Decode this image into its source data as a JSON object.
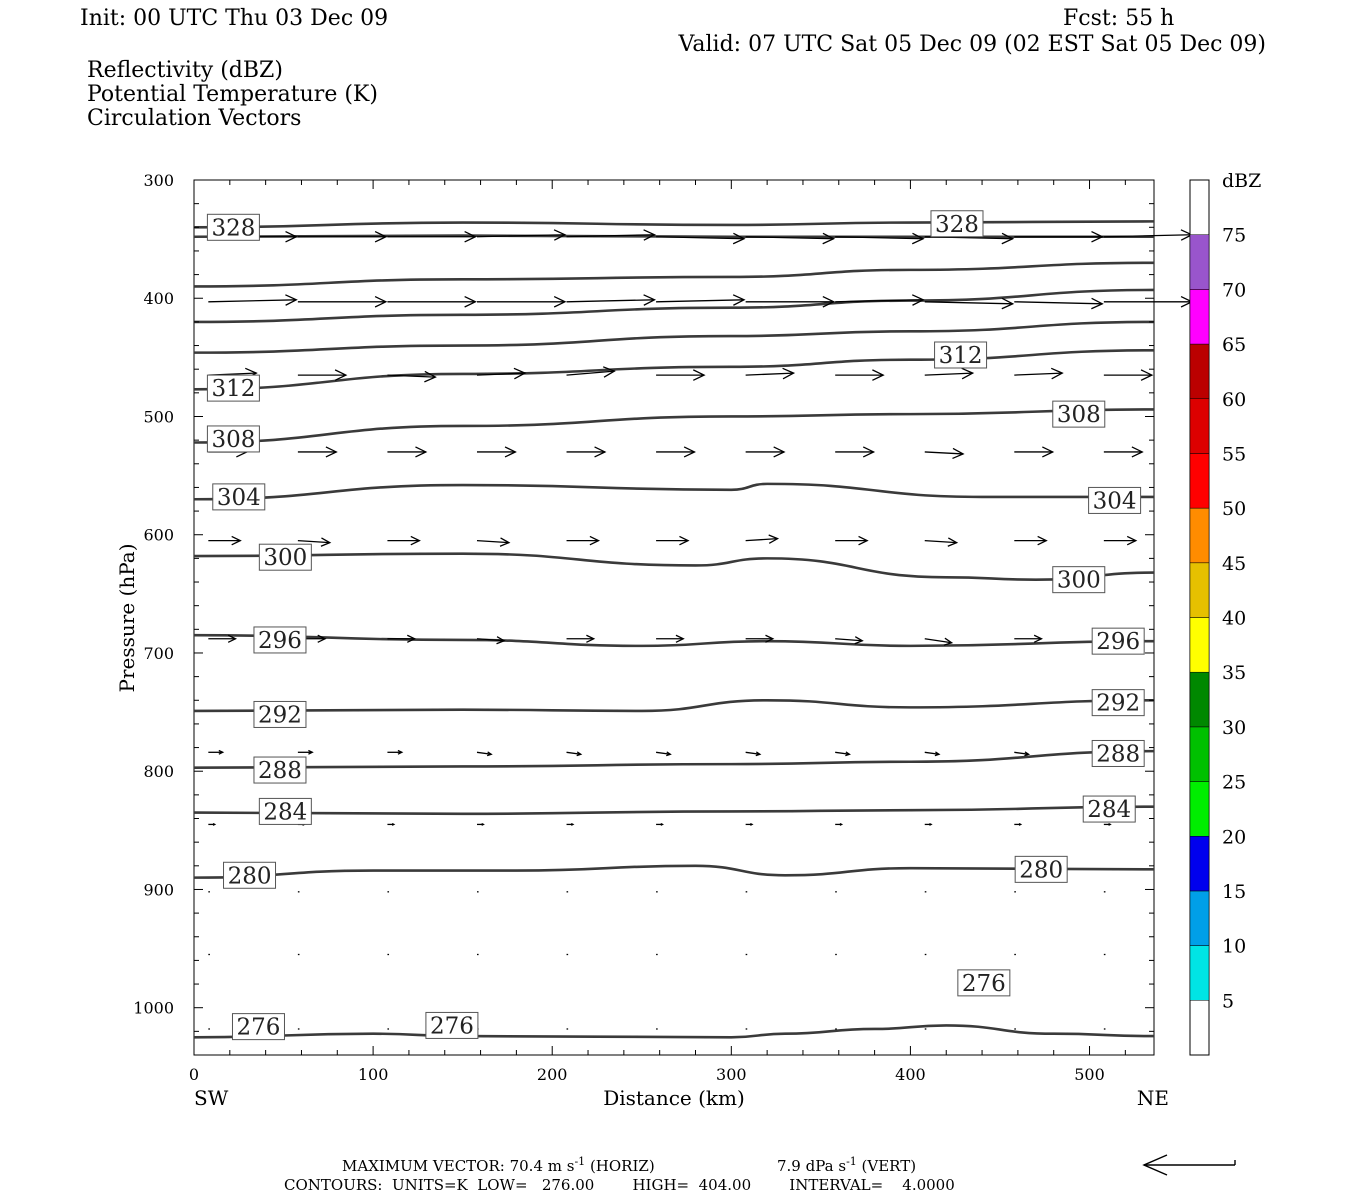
{
  "header": {
    "init": "Init: 00 UTC Thu 03 Dec 09",
    "fcst": "Fcst:   55 h",
    "valid": "Valid: 07 UTC Sat 05 Dec 09 (02 EST Sat 05 Dec 09)",
    "fields": [
      {
        "text": "Reflectivity (dBZ)",
        "color": "#000000"
      },
      {
        "text": "Potential Temperature (K)",
        "color": "#6e6e6e"
      },
      {
        "text": "Circulation Vectors",
        "color": "#000000"
      }
    ]
  },
  "footer": {
    "max_vector_pre": "MAXIMUM VECTOR:  70.4 m s",
    "max_vector_horiz": " (HORIZ)",
    "max_vector_vert_pre": "7.9 dPa s",
    "max_vector_vert": " (VERT)",
    "exponent": "-1",
    "contours": "CONTOURS:  UNITS=K  LOW=   276.00        HIGH=  404.00        INTERVAL=    4.0000"
  },
  "colorbar": {
    "unit": "dBZ",
    "levels": [
      5,
      10,
      15,
      20,
      25,
      30,
      35,
      40,
      45,
      50,
      55,
      60,
      65,
      70,
      75
    ],
    "colors": [
      "#00e5e5",
      "#009fe8",
      "#0000ee",
      "#00ee00",
      "#00c000",
      "#008800",
      "#ffff00",
      "#e6c000",
      "#ff8c00",
      "#ff0000",
      "#dd0000",
      "#bb0000",
      "#ff00ff",
      "#9955cc"
    ]
  },
  "chart_data": {
    "type": "line",
    "title": "",
    "xlabel": "Distance (km)",
    "ylabel": "Pressure (hPa)",
    "xlim": [
      0,
      536
    ],
    "ylim": [
      300,
      1040
    ],
    "y_inverted": true,
    "x_ticks": [
      0,
      100,
      200,
      300,
      400,
      500
    ],
    "y_ticks": [
      300,
      400,
      500,
      600,
      700,
      800,
      900,
      1000
    ],
    "x_end_labels": {
      "left": "SW",
      "right": "NE"
    },
    "contour_field": "Potential Temperature (K)",
    "vector_field": "Circulation Vectors",
    "contours": [
      {
        "label": "",
        "x": [
          0,
          150,
          300,
          400,
          536
        ],
        "p": [
          340,
          336,
          338,
          336,
          335
        ]
      },
      {
        "label": "328",
        "x": [
          0,
          150,
          300,
          400,
          536
        ],
        "p": [
          348,
          347,
          348,
          348,
          348
        ]
      },
      {
        "label": "",
        "x": [
          0,
          150,
          300,
          400,
          536
        ],
        "p": [
          390,
          384,
          382,
          376,
          370
        ]
      },
      {
        "label": "",
        "x": [
          0,
          150,
          300,
          400,
          536
        ],
        "p": [
          420,
          414,
          408,
          402,
          393
        ]
      },
      {
        "label": "",
        "x": [
          0,
          150,
          300,
          400,
          536
        ],
        "p": [
          446,
          440,
          432,
          428,
          420
        ]
      },
      {
        "label": "312",
        "x": [
          0,
          150,
          300,
          400,
          536
        ],
        "p": [
          477,
          464,
          458,
          452,
          444
        ]
      },
      {
        "label": "308",
        "x": [
          0,
          150,
          300,
          400,
          536
        ],
        "p": [
          522,
          508,
          500,
          498,
          494
        ]
      },
      {
        "label": "304",
        "x": [
          0,
          150,
          300,
          320,
          440,
          536
        ],
        "p": [
          570,
          558,
          562,
          557,
          568,
          568
        ]
      },
      {
        "label": "300",
        "x": [
          0,
          150,
          280,
          320,
          420,
          470,
          536
        ],
        "p": [
          618,
          616,
          626,
          620,
          636,
          638,
          632
        ]
      },
      {
        "label": "296",
        "x": [
          0,
          150,
          250,
          320,
          400,
          536
        ],
        "p": [
          685,
          689,
          694,
          690,
          694,
          690
        ]
      },
      {
        "label": "292",
        "x": [
          0,
          150,
          250,
          320,
          400,
          536
        ],
        "p": [
          749,
          748,
          749,
          740,
          746,
          740
        ]
      },
      {
        "label": "288",
        "x": [
          0,
          150,
          300,
          400,
          536
        ],
        "p": [
          797,
          796,
          794,
          792,
          783
        ]
      },
      {
        "label": "284",
        "x": [
          0,
          150,
          300,
          400,
          536
        ],
        "p": [
          835,
          836,
          834,
          833,
          830
        ]
      },
      {
        "label": "280",
        "x": [
          0,
          100,
          180,
          280,
          330,
          400,
          536
        ],
        "p": [
          890,
          884,
          884,
          880,
          888,
          882,
          883
        ]
      },
      {
        "label": "276",
        "x": [
          0,
          100,
          150,
          300,
          330,
          380,
          420,
          480,
          536
        ],
        "p": [
          1025,
          1022,
          1024,
          1025,
          1022,
          1018,
          1015,
          1022,
          1024
        ]
      }
    ],
    "contour_labels": [
      {
        "label": "328",
        "x": 22,
        "p": 340
      },
      {
        "label": "328",
        "x": 426,
        "p": 337
      },
      {
        "label": "312",
        "x": 22,
        "p": 476
      },
      {
        "label": "312",
        "x": 428,
        "p": 448
      },
      {
        "label": "308",
        "x": 22,
        "p": 519
      },
      {
        "label": "308",
        "x": 494,
        "p": 498
      },
      {
        "label": "304",
        "x": 25,
        "p": 568
      },
      {
        "label": "304",
        "x": 514,
        "p": 571
      },
      {
        "label": "300",
        "x": 51,
        "p": 619
      },
      {
        "label": "300",
        "x": 494,
        "p": 638
      },
      {
        "label": "296",
        "x": 48,
        "p": 689
      },
      {
        "label": "296",
        "x": 516,
        "p": 690
      },
      {
        "label": "292",
        "x": 48,
        "p": 752
      },
      {
        "label": "292",
        "x": 516,
        "p": 742
      },
      {
        "label": "288",
        "x": 48,
        "p": 799
      },
      {
        "label": "288",
        "x": 516,
        "p": 785
      },
      {
        "label": "284",
        "x": 51,
        "p": 834
      },
      {
        "label": "284",
        "x": 511,
        "p": 832
      },
      {
        "label": "280",
        "x": 31,
        "p": 888
      },
      {
        "label": "280",
        "x": 473,
        "p": 883
      },
      {
        "label": "276",
        "x": 36,
        "p": 1016
      },
      {
        "label": "276",
        "x": 144,
        "p": 1015
      },
      {
        "label": "276",
        "x": 441,
        "p": 979
      }
    ],
    "vectors": [
      {
        "p": 348,
        "u": 55,
        "items": [
          [
            8,
            0
          ],
          [
            58,
            0
          ],
          [
            108,
            0
          ],
          [
            158,
            -1
          ],
          [
            208,
            -1
          ],
          [
            258,
            1
          ],
          [
            308,
            1
          ],
          [
            358,
            1
          ],
          [
            408,
            1
          ],
          [
            458,
            0
          ],
          [
            508,
            -1
          ]
        ]
      },
      {
        "p": 403,
        "u": 55,
        "items": [
          [
            8,
            -1
          ],
          [
            58,
            0
          ],
          [
            108,
            0
          ],
          [
            158,
            0
          ],
          [
            208,
            -1
          ],
          [
            258,
            -1
          ],
          [
            308,
            0
          ],
          [
            358,
            -1
          ],
          [
            408,
            1
          ],
          [
            458,
            1
          ],
          [
            508,
            0
          ]
        ]
      },
      {
        "p": 465,
        "u": 30,
        "items": [
          [
            8,
            -1
          ],
          [
            58,
            0
          ],
          [
            108,
            1
          ],
          [
            158,
            -1
          ],
          [
            208,
            -2
          ],
          [
            258,
            0
          ],
          [
            308,
            -1
          ],
          [
            358,
            0
          ],
          [
            408,
            -1
          ],
          [
            458,
            -1
          ],
          [
            508,
            0
          ]
        ]
      },
      {
        "p": 530,
        "u": 24,
        "items": [
          [
            8,
            0
          ],
          [
            58,
            0
          ],
          [
            108,
            0
          ],
          [
            158,
            0
          ],
          [
            208,
            0
          ],
          [
            258,
            0
          ],
          [
            308,
            0
          ],
          [
            358,
            0
          ],
          [
            408,
            1
          ],
          [
            458,
            0
          ],
          [
            508,
            0
          ]
        ]
      },
      {
        "p": 605,
        "u": 20,
        "items": [
          [
            8,
            0
          ],
          [
            58,
            1
          ],
          [
            108,
            0
          ],
          [
            158,
            1
          ],
          [
            208,
            0
          ],
          [
            258,
            0
          ],
          [
            308,
            -1
          ],
          [
            358,
            0
          ],
          [
            408,
            1
          ],
          [
            458,
            0
          ],
          [
            508,
            0
          ]
        ]
      },
      {
        "p": 688,
        "u": 17,
        "items": [
          [
            8,
            0
          ],
          [
            58,
            0
          ],
          [
            108,
            0
          ],
          [
            158,
            1
          ],
          [
            208,
            0
          ],
          [
            258,
            0
          ],
          [
            308,
            0
          ],
          [
            358,
            1
          ],
          [
            408,
            2
          ],
          [
            458,
            0
          ],
          [
            508,
            1
          ]
        ]
      },
      {
        "p": 784,
        "u": 9,
        "items": [
          [
            8,
            0
          ],
          [
            58,
            0
          ],
          [
            108,
            0
          ],
          [
            158,
            1
          ],
          [
            208,
            1
          ],
          [
            258,
            1
          ],
          [
            308,
            1
          ],
          [
            358,
            1
          ],
          [
            408,
            1
          ],
          [
            458,
            1
          ],
          [
            508,
            1
          ]
        ]
      },
      {
        "p": 845,
        "u": 4,
        "items": [
          [
            8,
            0
          ],
          [
            58,
            0
          ],
          [
            108,
            0
          ],
          [
            158,
            0
          ],
          [
            208,
            0
          ],
          [
            258,
            0
          ],
          [
            308,
            0
          ],
          [
            358,
            0
          ],
          [
            408,
            0
          ],
          [
            458,
            0
          ],
          [
            508,
            0
          ]
        ]
      },
      {
        "p": 902,
        "u": 1,
        "items": [
          [
            8,
            0
          ],
          [
            58,
            0
          ],
          [
            108,
            0
          ],
          [
            158,
            0
          ],
          [
            208,
            0
          ],
          [
            258,
            0
          ],
          [
            308,
            0
          ],
          [
            358,
            0
          ],
          [
            408,
            0
          ],
          [
            458,
            0
          ],
          [
            508,
            0
          ]
        ]
      },
      {
        "p": 955,
        "u": 1,
        "items": [
          [
            8,
            0
          ],
          [
            58,
            0
          ],
          [
            108,
            0
          ],
          [
            158,
            0
          ],
          [
            208,
            0
          ],
          [
            258,
            0
          ],
          [
            308,
            0
          ],
          [
            358,
            0
          ],
          [
            408,
            0
          ],
          [
            458,
            0
          ],
          [
            508,
            0
          ]
        ]
      },
      {
        "p": 1018,
        "u": 1,
        "items": [
          [
            8,
            0
          ],
          [
            58,
            0
          ],
          [
            108,
            0
          ],
          [
            158,
            0
          ],
          [
            208,
            0
          ],
          [
            258,
            0
          ],
          [
            308,
            0
          ],
          [
            358,
            0
          ],
          [
            408,
            0
          ],
          [
            458,
            0
          ],
          [
            508,
            0
          ]
        ]
      }
    ]
  }
}
